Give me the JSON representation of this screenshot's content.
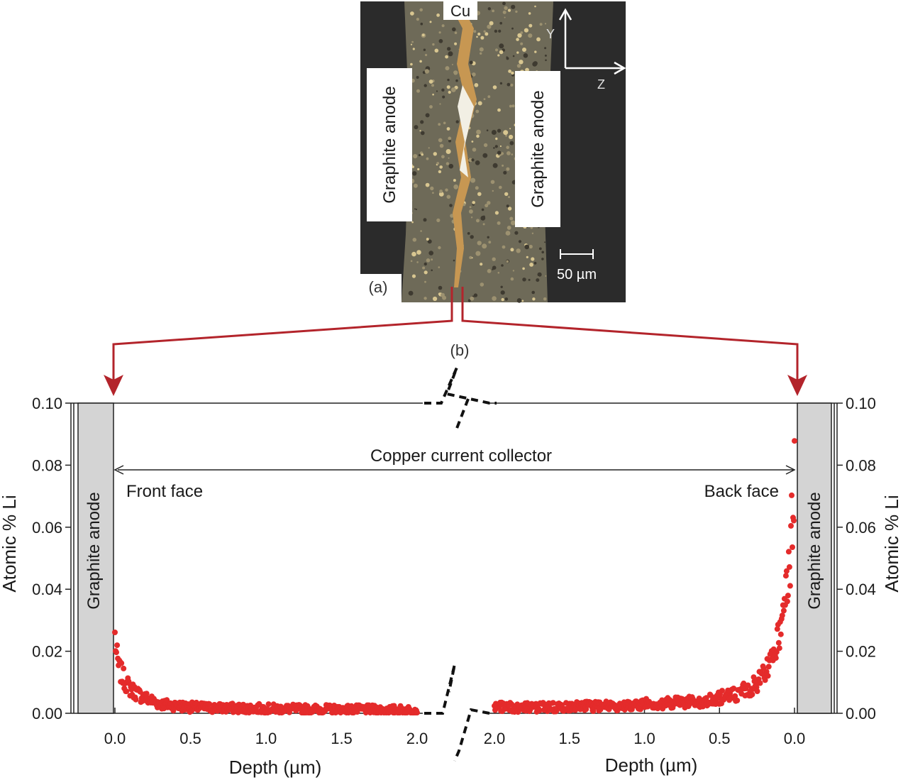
{
  "panel_a": {
    "label": "(a)",
    "cu_label": "Cu",
    "left_anode_label": "Graphite anode",
    "right_anode_label": "Graphite anode",
    "axis_y_label": "Y",
    "axis_z_label": "Z",
    "scale_bar_label": "50 µm"
  },
  "panel_b_label": "(b)",
  "chart_data": {
    "type": "scatter",
    "ylabel_left": "Atomic % Li",
    "ylabel_right": "Atomic % Li",
    "ylim": [
      0,
      0.1
    ],
    "yticks": [
      0.0,
      0.02,
      0.04,
      0.06,
      0.08,
      0.1
    ],
    "ytick_labels": [
      "0.00",
      "0.02",
      "0.04",
      "0.06",
      "0.08",
      "0.10"
    ],
    "xlabel_left": "Depth (µm)",
    "xlabel_right": "Depth (µm)",
    "xticks_left": [
      0.0,
      0.5,
      1.0,
      1.5,
      2.0
    ],
    "xtick_labels_left": [
      "0.0",
      "0.5",
      "1.0",
      "1.5",
      "2.0"
    ],
    "xticks_right": [
      2.0,
      1.5,
      1.0,
      0.5,
      0.0
    ],
    "xtick_labels_right": [
      "2.0",
      "1.5",
      "1.0",
      "0.5",
      "0.0"
    ],
    "xlim": [
      0,
      2.0
    ],
    "marker_color": "#e42b2b",
    "region_labels": {
      "left_anode": "Graphite anode",
      "right_anode": "Graphite anode",
      "collector": "Copper current collector",
      "front": "Front face",
      "back": "Back face"
    },
    "series": [
      {
        "face": "front",
        "x": [
          0.0,
          0.01,
          0.02,
          0.03,
          0.05,
          0.07,
          0.1,
          0.13,
          0.16,
          0.2,
          0.25,
          0.3,
          0.4,
          0.5,
          0.7,
          1.0,
          1.3,
          1.6,
          2.0
        ],
        "y": [
          0.025,
          0.019,
          0.016,
          0.014,
          0.012,
          0.01,
          0.008,
          0.007,
          0.006,
          0.005,
          0.004,
          0.003,
          0.0025,
          0.002,
          0.0017,
          0.0015,
          0.0013,
          0.0012,
          0.001
        ]
      },
      {
        "face": "back",
        "x": [
          2.0,
          1.6,
          1.2,
          1.0,
          0.8,
          0.6,
          0.5,
          0.4,
          0.3,
          0.25,
          0.2,
          0.15,
          0.1,
          0.07,
          0.05,
          0.03,
          0.02,
          0.01,
          0.0
        ],
        "y": [
          0.002,
          0.002,
          0.0025,
          0.003,
          0.0035,
          0.004,
          0.005,
          0.006,
          0.008,
          0.01,
          0.013,
          0.017,
          0.025,
          0.032,
          0.04,
          0.05,
          0.058,
          0.067,
          0.076
        ]
      }
    ]
  }
}
